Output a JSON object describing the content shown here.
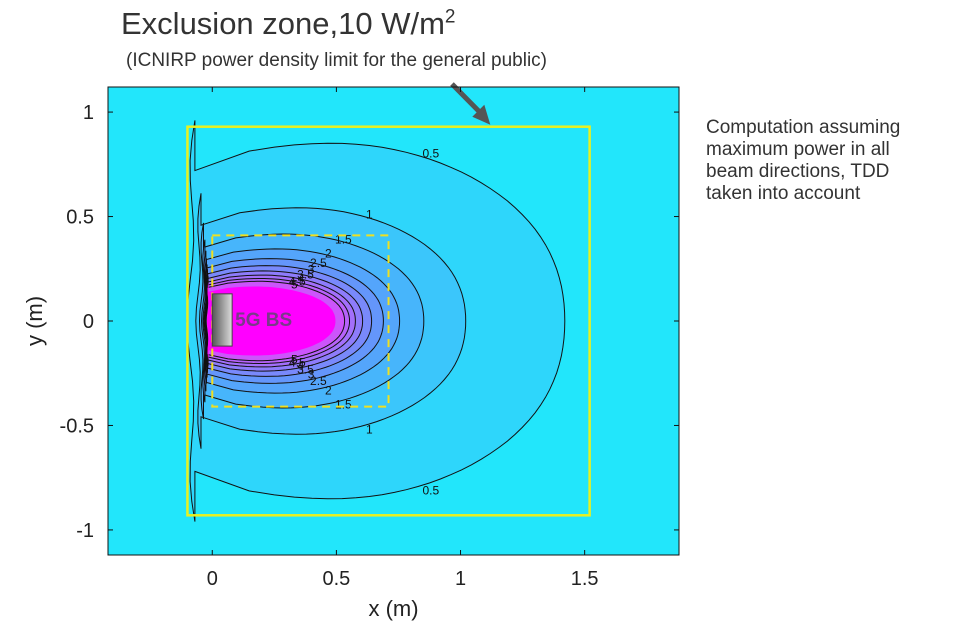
{
  "annotations": {
    "exclusion_title_prefix": "Exclusion zone,10 W/m",
    "exclusion_title_sup": "2",
    "exclusion_subtitle": "(ICNIRP power density limit for the general public)",
    "side_note_lines": [
      "Computation assuming",
      "maximum power in all",
      "beam directions, TDD",
      "taken into account"
    ],
    "bs_label": "5G BS"
  },
  "chart_data": {
    "type": "contour",
    "title": "Exclusion zone,10 W/m2",
    "subtitle": "(ICNIRP power density limit for the general public)",
    "xlabel": "x (m)",
    "ylabel": "y (m)",
    "xlim": [
      -0.42,
      1.88
    ],
    "ylim": [
      -1.12,
      1.12
    ],
    "xticks": [
      0,
      0.5,
      1,
      1.5
    ],
    "xtick_labels": [
      "0",
      "0.5",
      "1",
      "1.5"
    ],
    "yticks": [
      1,
      0.5,
      0,
      -0.5,
      -1
    ],
    "ytick_labels": [
      "1",
      "0.5",
      "0",
      "-0.5",
      "-1"
    ],
    "contour_levels": [
      0.5,
      1,
      1.5,
      2,
      2.5,
      3,
      3.5,
      4,
      4.5,
      5
    ],
    "contour_labels": [
      "0.5",
      "1",
      "1.5",
      "2",
      "2.5",
      "3",
      "3.5",
      "4",
      "4.5",
      "5"
    ],
    "exclusion_box": {
      "x": [
        -0.1,
        1.52
      ],
      "y": [
        -0.93,
        0.93
      ]
    },
    "inner_box": {
      "x": [
        0,
        0.71
      ],
      "y": [
        -0.41,
        0.41
      ]
    },
    "base_station": {
      "label": "5G BS",
      "x": [
        0,
        0.08
      ],
      "y": [
        -0.12,
        0.13
      ]
    },
    "colors": {
      "background": "#22e6fb",
      "low": "#22e6fb",
      "mid": "#5a9dfb",
      "high": "#cc55fb",
      "saturated": "#ff00ff",
      "exclusion_box": "#e8f020",
      "inner_box": "#f0e020"
    }
  }
}
